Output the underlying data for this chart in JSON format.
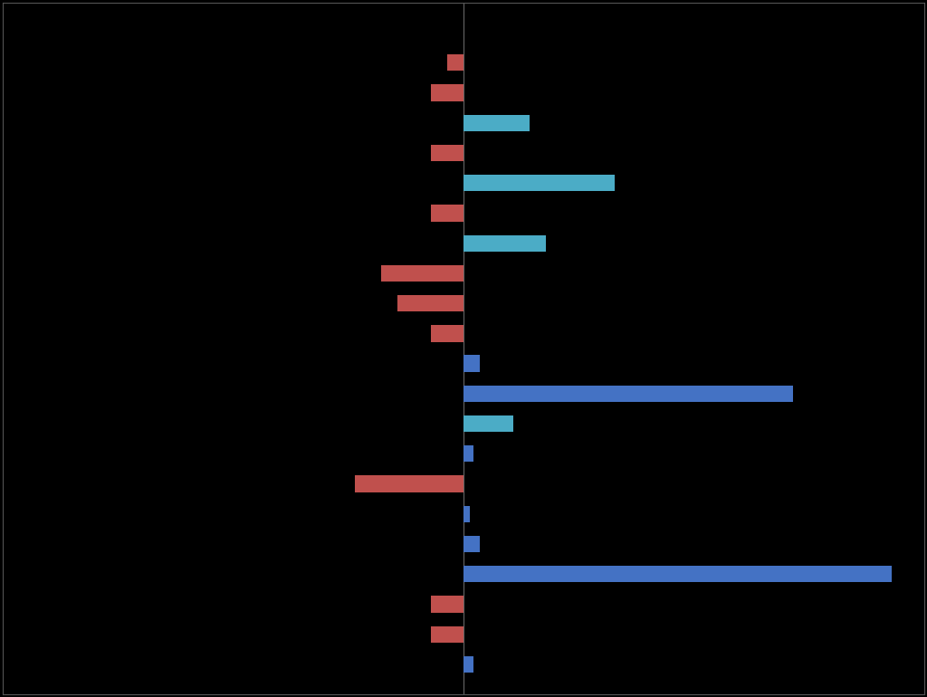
{
  "background_color": "#000000",
  "grid_color": "#3a3a4a",
  "bars": [
    {
      "y": 20,
      "value": -0.5,
      "color": "#c0504d"
    },
    {
      "y": 19,
      "value": -1.0,
      "color": "#c0504d"
    },
    {
      "y": 18,
      "value": 2.0,
      "color": "#4bacc6"
    },
    {
      "y": 17,
      "value": -1.0,
      "color": "#c0504d"
    },
    {
      "y": 16,
      "value": 4.6,
      "color": "#4bacc6"
    },
    {
      "y": 15,
      "value": -1.0,
      "color": "#c0504d"
    },
    {
      "y": 14,
      "value": 2.5,
      "color": "#4bacc6"
    },
    {
      "y": 13,
      "value": -2.5,
      "color": "#c0504d"
    },
    {
      "y": 12,
      "value": -2.0,
      "color": "#c0504d"
    },
    {
      "y": 11,
      "value": -1.0,
      "color": "#c0504d"
    },
    {
      "y": 10,
      "value": 0.5,
      "color": "#4472c4"
    },
    {
      "y": 9,
      "value": 10.0,
      "color": "#4472c4"
    },
    {
      "y": 8,
      "value": 1.5,
      "color": "#4bacc6"
    },
    {
      "y": 7,
      "value": 0.3,
      "color": "#4472c4"
    },
    {
      "y": 6,
      "value": -3.3,
      "color": "#c0504d"
    },
    {
      "y": 5,
      "value": 0.2,
      "color": "#4472c4"
    },
    {
      "y": 4,
      "value": 0.5,
      "color": "#4472c4"
    },
    {
      "y": 3,
      "value": 13.0,
      "color": "#4472c4"
    },
    {
      "y": 2,
      "value": -1.0,
      "color": "#c0504d"
    },
    {
      "y": 1,
      "value": -1.0,
      "color": "#c0504d"
    },
    {
      "y": 0,
      "value": 0.3,
      "color": "#4472c4"
    }
  ],
  "xlim": [
    -14,
    14
  ],
  "ylim": [
    -1,
    22
  ],
  "bar_height": 0.55,
  "figsize": [
    10.24,
    7.7
  ],
  "dpi": 100
}
